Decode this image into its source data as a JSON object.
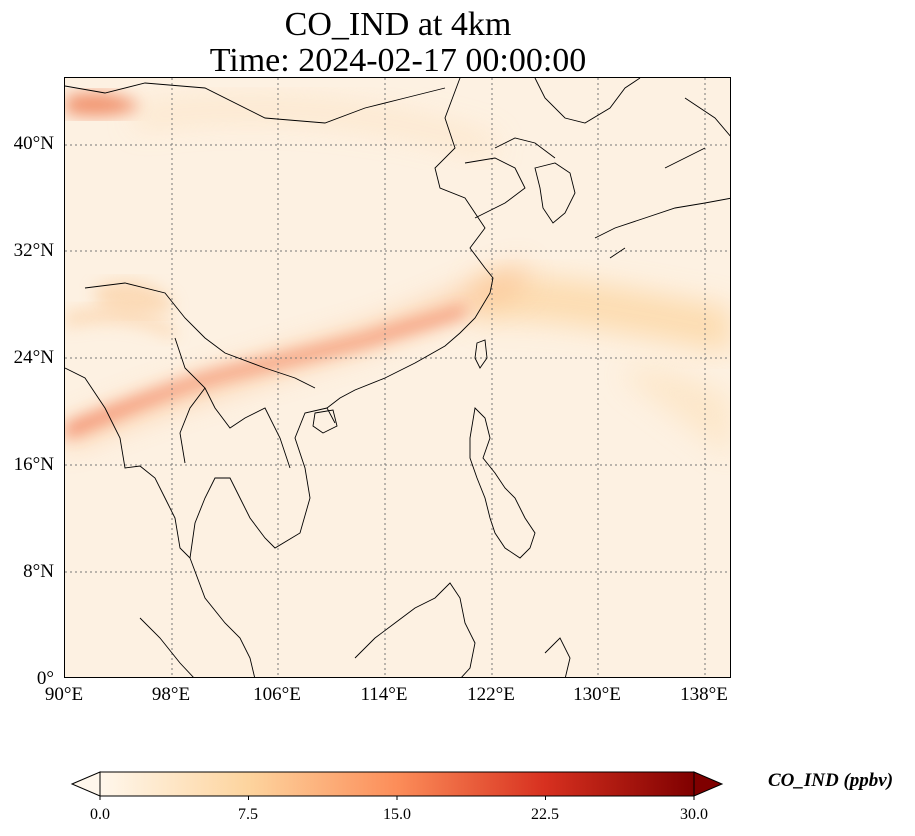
{
  "title": {
    "line1": "CO_IND at 4km",
    "line2": "Time: 2024-02-17 00:00:00"
  },
  "map": {
    "extent_lon": [
      90,
      140
    ],
    "extent_lat": [
      0,
      45
    ],
    "lat_ticks": [
      "0°",
      "8°N",
      "16°N",
      "24°N",
      "32°N",
      "40°N"
    ],
    "lon_ticks": [
      "90°E",
      "98°E",
      "106°E",
      "114°E",
      "122°E",
      "130°E",
      "138°E"
    ],
    "gridlines": "dotted",
    "colormap": "OrRd"
  },
  "colorbar": {
    "label": "CO_IND (ppbv)",
    "ticks": [
      "0.0",
      "7.5",
      "15.0",
      "22.5",
      "30.0"
    ],
    "min": 0,
    "max": 30,
    "extend": "both",
    "colors": [
      "#fff7ec",
      "#fdd49e",
      "#fc8d59",
      "#d7301f",
      "#7f0000"
    ]
  }
}
